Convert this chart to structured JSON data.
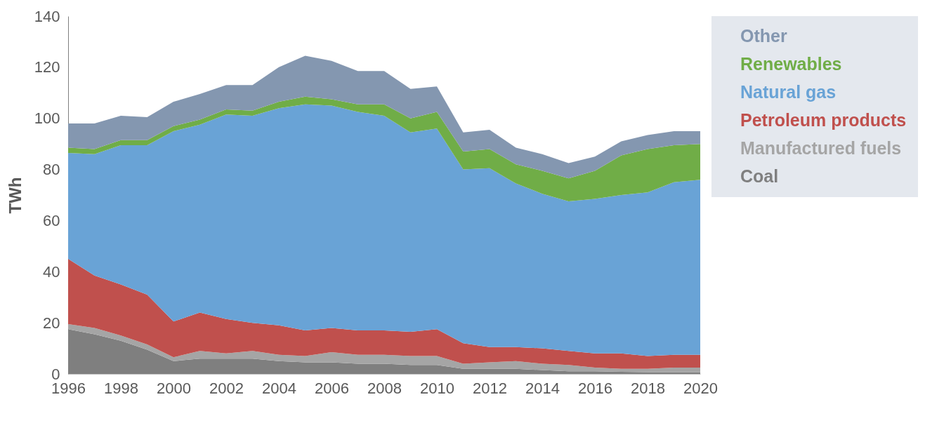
{
  "chart_data": {
    "type": "area",
    "stacked": true,
    "ylabel": "TWh",
    "x": [
      1996,
      1997,
      1998,
      1999,
      2000,
      2001,
      2002,
      2003,
      2004,
      2005,
      2006,
      2007,
      2008,
      2009,
      2010,
      2011,
      2012,
      2013,
      2014,
      2015,
      2016,
      2017,
      2018,
      2019,
      2020
    ],
    "xlim": [
      1996,
      2020
    ],
    "xticks": [
      1996,
      1998,
      2000,
      2002,
      2004,
      2006,
      2008,
      2010,
      2012,
      2014,
      2016,
      2018,
      2020
    ],
    "ylim": [
      0,
      140
    ],
    "yticks": [
      0,
      20,
      40,
      60,
      80,
      100,
      120,
      140
    ],
    "grid": false,
    "legend": "right",
    "series": [
      {
        "name": "Coal",
        "color": "#7f7f7f",
        "values": [
          17.5,
          15.5,
          13,
          9.5,
          5,
          6,
          6,
          6,
          5,
          4.5,
          4.5,
          4,
          4,
          3.5,
          3.5,
          2,
          2,
          2,
          1.5,
          1,
          1,
          0.8,
          0.7,
          0.7,
          0.7
        ]
      },
      {
        "name": "Manufactured fuels",
        "color": "#a5a5a5",
        "values": [
          2,
          2.5,
          2,
          2,
          1.5,
          3,
          2,
          3,
          2.5,
          2.5,
          4,
          3.5,
          3.5,
          3.5,
          3.5,
          2,
          2.5,
          3,
          2.5,
          2.5,
          1.5,
          1.2,
          1.3,
          1.8,
          1.8
        ]
      },
      {
        "name": "Petroleum products",
        "color": "#c0504d",
        "values": [
          25.5,
          20.5,
          20,
          19.5,
          14,
          15,
          13.5,
          11,
          11.5,
          10,
          9.5,
          9.5,
          9.5,
          9.5,
          10.5,
          8,
          6,
          5.5,
          6,
          5.5,
          5.5,
          6,
          5,
          5,
          5
        ]
      },
      {
        "name": "Natural gas",
        "color": "#69a3d6",
        "values": [
          41.5,
          47.5,
          54.5,
          58.5,
          74.5,
          73.5,
          80,
          81,
          85,
          88.5,
          87,
          85.5,
          84,
          78,
          78.5,
          68,
          70,
          64,
          60.5,
          58.5,
          60.5,
          62,
          64,
          67.5,
          68.5
        ]
      },
      {
        "name": "Renewables",
        "color": "#70ad47",
        "values": [
          2,
          2,
          2,
          2,
          2,
          2,
          2,
          2,
          2.5,
          3,
          2.5,
          3,
          4.5,
          5.5,
          6.5,
          7,
          7.5,
          7.5,
          9,
          9,
          11,
          15.5,
          17,
          14.5,
          14
        ]
      },
      {
        "name": "Other",
        "color": "#8497b0",
        "values": [
          9.5,
          10,
          9.5,
          9,
          9.5,
          10,
          9.5,
          10,
          13.5,
          16,
          15,
          13,
          13,
          11.5,
          10,
          7.5,
          7.5,
          6.5,
          6.5,
          6,
          5.5,
          5.5,
          5.5,
          5.5,
          5
        ]
      }
    ]
  }
}
